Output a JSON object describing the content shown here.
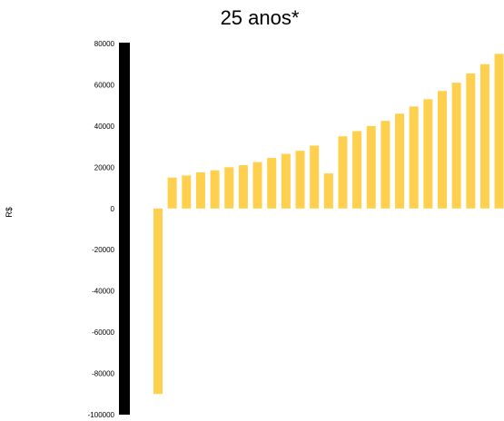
{
  "chart_data": {
    "type": "bar",
    "title": "25 anos*",
    "ylabel": "R$",
    "xlabel": "",
    "ylim": [
      -100000,
      80000
    ],
    "yticks": [
      80000,
      60000,
      40000,
      20000,
      0,
      -20000,
      -40000,
      -60000,
      -80000,
      -100000
    ],
    "grid": false,
    "bar_color": "#ffd04d",
    "axis_color": "#000000",
    "values": [
      -90000,
      15000,
      16000,
      17500,
      18500,
      20000,
      21000,
      22500,
      24500,
      26500,
      28000,
      30500,
      17000,
      35000,
      37500,
      40000,
      42500,
      46000,
      49500,
      53000,
      57000,
      61000,
      65500,
      70000,
      75000
    ]
  }
}
